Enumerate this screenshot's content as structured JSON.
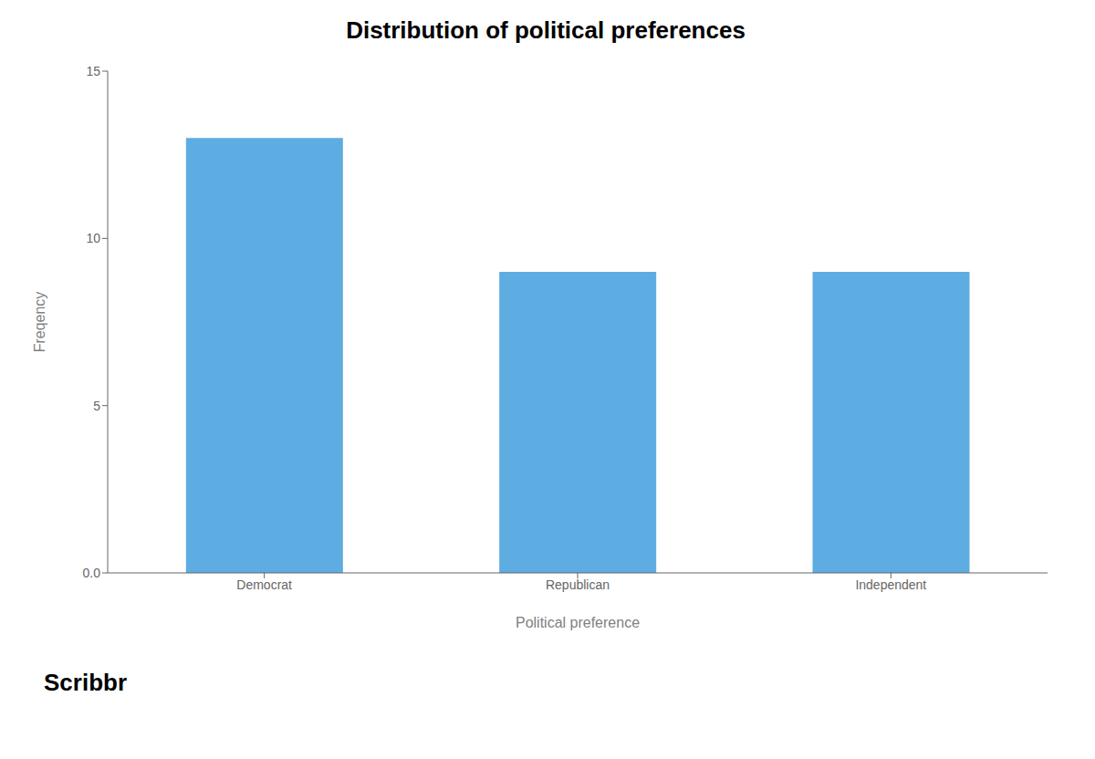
{
  "chart_data": {
    "type": "bar",
    "title": "Distribution of political preferences",
    "categories": [
      "Democrat",
      "Republican",
      "Independent"
    ],
    "values": [
      13,
      9,
      9
    ],
    "color": "#5DADE2",
    "xlabel": "Political preference",
    "ylabel": "Freqency",
    "ylim": [
      0,
      15
    ],
    "yticks": [
      {
        "value": 0,
        "label": "0.0"
      },
      5,
      10,
      15
    ],
    "grid": false,
    "annotations": [
      "Scribbr"
    ]
  }
}
